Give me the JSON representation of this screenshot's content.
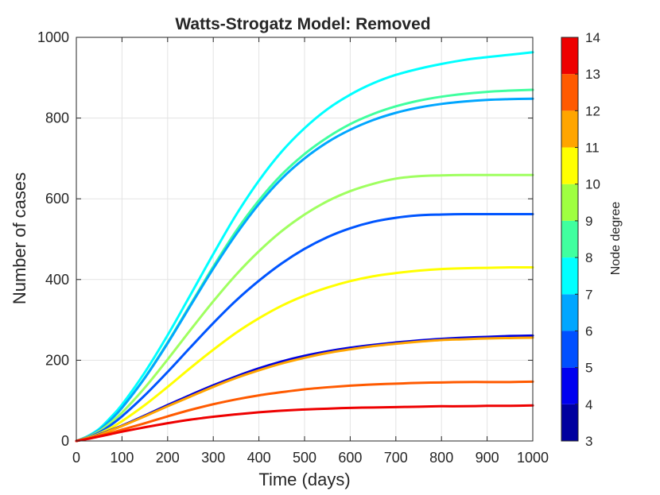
{
  "chart_data": {
    "type": "line",
    "title": "Watts-Strogatz Model: Removed",
    "xlabel": "Time (days)",
    "ylabel": "Number of cases",
    "xlim": [
      0,
      1000
    ],
    "ylim": [
      0,
      1000
    ],
    "xticks": [
      0,
      100,
      200,
      300,
      400,
      500,
      600,
      700,
      800,
      900,
      1000
    ],
    "yticks": [
      0,
      200,
      400,
      600,
      800,
      1000
    ],
    "grid": true,
    "x": [
      0,
      25,
      50,
      75,
      100,
      150,
      200,
      250,
      300,
      350,
      400,
      450,
      500,
      550,
      600,
      650,
      700,
      750,
      800,
      850,
      900,
      950,
      1000
    ],
    "series": [
      {
        "name": "Node degree 7",
        "node_degree": 7,
        "color": "#00ffff",
        "values": [
          0,
          12,
          30,
          58,
          90,
          170,
          262,
          362,
          463,
          560,
          645,
          717,
          775,
          822,
          858,
          886,
          907,
          922,
          934,
          944,
          951,
          957,
          963
        ]
      },
      {
        "name": "Node degree 8",
        "node_degree": 8,
        "color": "#40ff9f",
        "values": [
          0,
          11,
          27,
          52,
          82,
          157,
          244,
          338,
          432,
          520,
          596,
          660,
          711,
          752,
          785,
          810,
          829,
          843,
          853,
          860,
          865,
          868,
          870
        ]
      },
      {
        "name": "Node degree 6",
        "node_degree": 6,
        "color": "#00a6ff",
        "values": [
          0,
          11,
          27,
          52,
          82,
          156,
          242,
          335,
          427,
          512,
          587,
          650,
          700,
          740,
          771,
          795,
          813,
          826,
          835,
          841,
          845,
          847,
          848
        ]
      },
      {
        "name": "Node degree 9",
        "node_degree": 9,
        "color": "#9fff60",
        "values": [
          0,
          10,
          24,
          45,
          70,
          132,
          202,
          275,
          346,
          412,
          470,
          520,
          561,
          594,
          619,
          637,
          650,
          656,
          658,
          659,
          659,
          659,
          659
        ]
      },
      {
        "name": "Node degree 5",
        "node_degree": 5,
        "color": "#0055ff",
        "values": [
          0,
          9,
          21,
          39,
          61,
          113,
          171,
          232,
          292,
          348,
          397,
          440,
          476,
          505,
          527,
          543,
          553,
          559,
          561,
          562,
          562,
          562,
          562
        ]
      },
      {
        "name": "Node degree 10",
        "node_degree": 10,
        "color": "#ffff00",
        "values": [
          0,
          8,
          18,
          32,
          49,
          89,
          134,
          181,
          226,
          268,
          304,
          335,
          360,
          380,
          396,
          408,
          416,
          422,
          426,
          428,
          429,
          430,
          430
        ]
      },
      {
        "name": "Node degree 4",
        "node_degree": 4,
        "color": "#0000e0",
        "values": [
          0,
          7,
          16,
          27,
          38,
          63,
          89,
          114,
          138,
          160,
          180,
          197,
          211,
          222,
          231,
          238,
          244,
          249,
          253,
          256,
          258,
          260,
          261
        ]
      },
      {
        "name": "Node degree 12",
        "node_degree": 12,
        "color": "#ffa500",
        "values": [
          0,
          7,
          15,
          26,
          37,
          61,
          86,
          110,
          134,
          156,
          175,
          192,
          206,
          218,
          227,
          235,
          241,
          246,
          250,
          252,
          254,
          255,
          256
        ]
      },
      {
        "name": "Node degree 13",
        "node_degree": 13,
        "color": "#ff5a00",
        "values": [
          0,
          6,
          13,
          20,
          28,
          44,
          61,
          77,
          91,
          103,
          113,
          121,
          128,
          133,
          137,
          140,
          142,
          144,
          145,
          146,
          146,
          146,
          147
        ]
      },
      {
        "name": "Node degree 14",
        "node_degree": 14,
        "color": "#ee0000",
        "values": [
          0,
          5,
          11,
          17,
          23,
          34,
          44,
          53,
          60,
          66,
          71,
          75,
          78,
          80,
          82,
          83,
          84,
          85,
          86,
          86,
          87,
          87,
          88
        ]
      }
    ],
    "colorbar": {
      "label": "Node degree",
      "ticks": [
        3,
        4,
        5,
        6,
        7,
        8,
        9,
        10,
        11,
        12,
        13,
        14
      ],
      "band_colors": [
        "#00009f",
        "#0000f0",
        "#0050ff",
        "#00a6ff",
        "#00ffff",
        "#40ff9f",
        "#9fff40",
        "#ffff00",
        "#ffa500",
        "#ff5a00",
        "#ee0000"
      ]
    }
  }
}
